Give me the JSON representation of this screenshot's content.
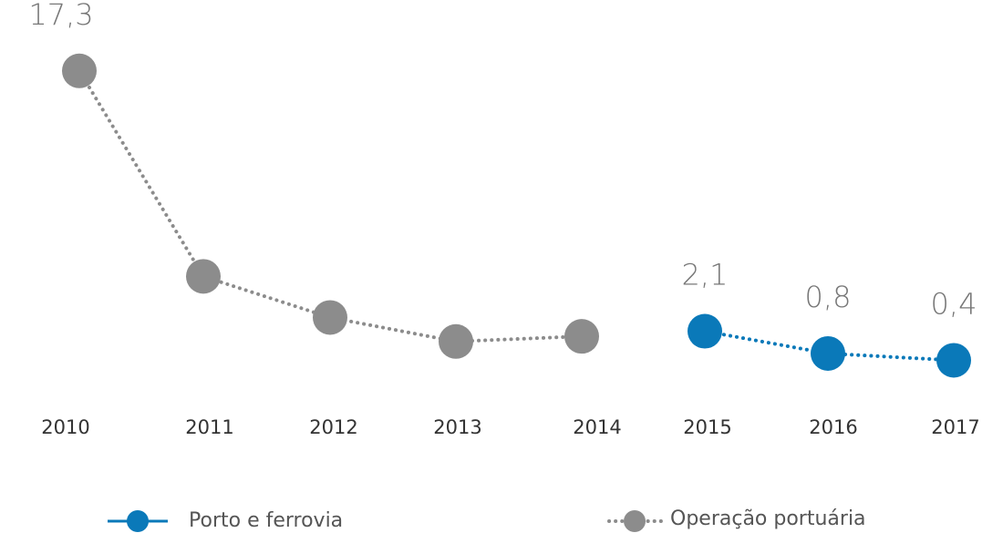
{
  "chart_data": {
    "type": "line",
    "categories": [
      "2010",
      "2011",
      "2012",
      "2013",
      "2014",
      "2015",
      "2016",
      "2017"
    ],
    "ylim": [
      0,
      20
    ],
    "series": [
      {
        "name": "Operação portuária",
        "color": "#8c8c8c",
        "values": [
          17.3,
          5.3,
          2.9,
          1.5,
          1.8,
          null,
          null,
          null
        ],
        "value_labels": [
          "17,3",
          null,
          null,
          null,
          null,
          null,
          null,
          null
        ]
      },
      {
        "name": "Porto e ferrovia",
        "color": "#0a79b9",
        "values": [
          null,
          null,
          null,
          null,
          null,
          2.1,
          0.8,
          0.4
        ],
        "value_labels": [
          null,
          null,
          null,
          null,
          null,
          "2,1",
          "0,8",
          "0,4"
        ]
      }
    ]
  }
}
